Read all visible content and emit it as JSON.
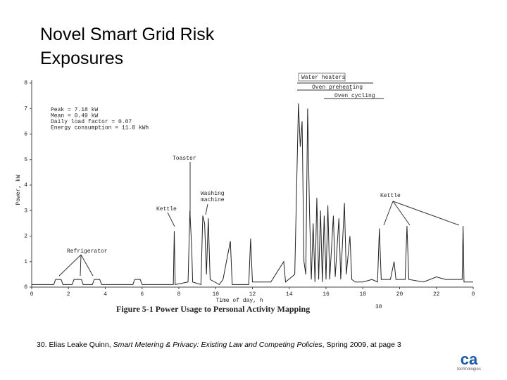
{
  "slide": {
    "title_lines": [
      "Novel Smart Grid  Risk",
      "Exposures"
    ],
    "footnote": {
      "prefix": "30. Elias Leake Quinn, ",
      "italic": "Smart Metering & Privacy: Existing Law and Competing Policies",
      "suffix": ", Spring 2009, at page 3"
    },
    "logo": {
      "mark": "ca",
      "text": "technologies"
    }
  },
  "chart_data": {
    "type": "line",
    "caption": "Figure 5-1 Power Usage to Personal Activity Mapping",
    "caption_ref": "30",
    "xlabel": "Time of day, h",
    "ylabel": "Power, kW",
    "xlim": [
      0,
      24
    ],
    "xticks": [
      0,
      2,
      4,
      6,
      8,
      10,
      12,
      14,
      16,
      18,
      20,
      22,
      {
        "value": 24,
        "label": "0"
      }
    ],
    "ylim": [
      0,
      8
    ],
    "yticks": [
      0,
      1,
      2,
      3,
      4,
      5,
      6,
      7,
      8
    ],
    "stats": [
      "Peak = 7.18 kW",
      "Mean = 0.49 kW",
      "Daily load factor = 0.07",
      "Energy consumption = 11.8 kWh"
    ],
    "annotations": [
      "Refrigerator",
      "Kettle",
      "Toaster",
      "Washing machine",
      "Kettle",
      "Water heaters",
      "Oven preheating",
      "Oven cycling"
    ],
    "series": [
      {
        "name": "Power",
        "color": "#222222",
        "x": [
          0,
          0.5,
          1.2,
          1.3,
          1.6,
          1.7,
          2.2,
          2.3,
          2.7,
          2.8,
          3.3,
          3.4,
          3.7,
          3.8,
          5.5,
          5.6,
          5.9,
          6,
          7.7,
          7.75,
          7.8,
          8.5,
          8.6,
          8.7,
          8.75,
          9.2,
          9.3,
          9.4,
          9.5,
          9.6,
          9.7,
          10.2,
          10.4,
          10.8,
          10.9,
          11.8,
          11.9,
          12,
          13,
          13.7,
          13.8,
          14.3,
          14.5,
          14.6,
          14.7,
          14.8,
          14.9,
          15,
          15.1,
          15.2,
          15.3,
          15.4,
          15.5,
          15.6,
          15.7,
          15.8,
          15.9,
          16,
          16.1,
          16.2,
          16.4,
          16.5,
          16.7,
          16.8,
          17,
          17.1,
          17.3,
          17.4,
          17.6,
          18,
          18.5,
          18.8,
          18.9,
          19,
          19.5,
          19.7,
          19.8,
          20.3,
          20.4,
          20.5,
          21.3,
          22,
          22.5,
          23.4,
          23.45,
          23.5,
          24
        ],
        "values": [
          0.1,
          0.1,
          0.1,
          0.3,
          0.3,
          0.1,
          0.1,
          0.3,
          0.3,
          0.1,
          0.1,
          0.3,
          0.3,
          0.1,
          0.1,
          0.3,
          0.3,
          0.1,
          0.1,
          2.2,
          0.1,
          0.2,
          3.0,
          1.5,
          0.2,
          0.1,
          2.8,
          2.5,
          0.5,
          2.7,
          0.3,
          0.1,
          0.3,
          1.8,
          0.1,
          0.1,
          1.9,
          0.2,
          0.2,
          1.0,
          0.2,
          0.5,
          7.2,
          5.5,
          6.5,
          1.0,
          0.5,
          7.0,
          3.0,
          0.3,
          2.5,
          0.2,
          3.5,
          0.3,
          3.0,
          0.2,
          2.8,
          0.3,
          3.2,
          0.3,
          2.8,
          0.4,
          2.7,
          0.3,
          3.3,
          0.5,
          2.0,
          0.3,
          0.2,
          0.2,
          0.3,
          0.2,
          2.3,
          0.3,
          0.3,
          1.0,
          0.3,
          0.3,
          2.4,
          0.3,
          0.2,
          0.4,
          0.3,
          0.3,
          2.4,
          0.2,
          0.2
        ]
      }
    ]
  }
}
